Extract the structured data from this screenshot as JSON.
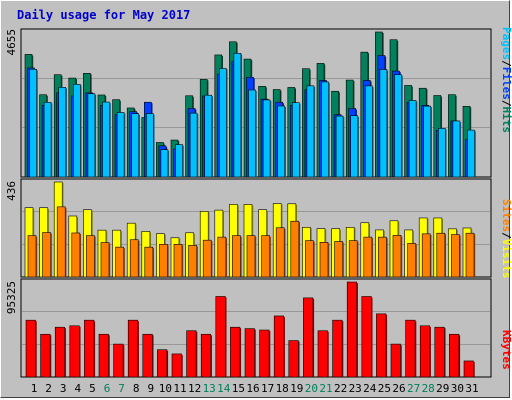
{
  "chart_data": {
    "type": "bar",
    "title": "Daily usage for May 2017",
    "categories": [
      "1",
      "2",
      "3",
      "4",
      "5",
      "6",
      "7",
      "8",
      "9",
      "10",
      "11",
      "12",
      "13",
      "14",
      "15",
      "16",
      "17",
      "18",
      "19",
      "20",
      "21",
      "22",
      "23",
      "24",
      "25",
      "26",
      "27",
      "28",
      "29",
      "30",
      "31"
    ],
    "weekend_days": [
      "6",
      "7",
      "13",
      "14",
      "20",
      "21",
      "27",
      "28"
    ],
    "panels": [
      {
        "max_label": "4655",
        "ymax": 4655,
        "legend": [
          {
            "label": "Pages",
            "color": "#00c0ff"
          },
          {
            "label": "/",
            "color": "#000000"
          },
          {
            "label": "Files",
            "color": "#0040ff"
          },
          {
            "label": "/",
            "color": "#000000"
          },
          {
            "label": "Hits",
            "color": "#00805c"
          }
        ],
        "series": [
          {
            "name": "Hits",
            "color": "#00805c",
            "values": [
              3936,
              2641,
              3284,
              3176,
              3329,
              2633,
              2482,
              2216,
              1910,
              1108,
              1186,
              2608,
              3134,
              3918,
              4341,
              3785,
              2910,
              2808,
              2875,
              3477,
              3647,
              2753,
              3112,
              4008,
              4655,
              4407,
              2938,
              2850,
              2616,
              2642,
              2270
            ]
          },
          {
            "name": "Files",
            "color": "#0040ff",
            "values": [
              3500,
              2300,
              2700,
              2600,
              2700,
              2300,
              2000,
              2100,
              2400,
              1000,
              900,
              2200,
              2600,
              3300,
              3700,
              3200,
              2500,
              2400,
              2300,
              2800,
              3100,
              2000,
              2200,
              3100,
              3900,
              3400,
              2400,
              2300,
              1500,
              1800,
              1200
            ]
          },
          {
            "name": "Pages",
            "color": "#00c0ff",
            "values": [
              3458,
              2396,
              2879,
              2973,
              2672,
              2407,
              2071,
              2033,
              2036,
              877,
              1041,
              2049,
              2626,
              3484,
              3969,
              2794,
              2474,
              2280,
              2389,
              2927,
              3052,
              1956,
              1968,
              2925,
              3450,
              3284,
              2456,
              2275,
              1562,
              1799,
              1506
            ]
          }
        ]
      },
      {
        "max_label": "436",
        "ymax": 436,
        "legend": [
          {
            "label": "Sites",
            "color": "#ff8000"
          },
          {
            "label": "/",
            "color": "#000000"
          },
          {
            "label": "Visits",
            "color": "#ffff00"
          }
        ],
        "series": [
          {
            "name": "Visits",
            "color": "#ffff00",
            "values": [
              318,
              318,
              436,
              280,
              309,
              215,
              215,
              247,
              209,
              199,
              180,
              203,
              301,
              307,
              333,
              333,
              309,
              337,
              336,
              228,
              222,
              222,
              228,
              249,
              216,
              258,
              216,
              271,
              271,
              221,
              225
            ]
          },
          {
            "name": "Sites",
            "color": "#ff8000",
            "values": [
              190,
              204,
              322,
              202,
              190,
              158,
              137,
              171,
              137,
              150,
              150,
              145,
              169,
              183,
              190,
              190,
              190,
              226,
              256,
              167,
              159,
              163,
              167,
              183,
              183,
              191,
              154,
              198,
              201,
              195,
              201
            ]
          }
        ]
      },
      {
        "max_label": "95325",
        "ymax": 95325,
        "legend": [
          {
            "label": "KBytes",
            "color": "#ff0000"
          }
        ],
        "series": [
          {
            "name": "KBytes",
            "color": "#ff0000",
            "values": [
              57017,
              42900,
              49958,
              51370,
              57017,
              42900,
              33025,
              57017,
              42900,
              27379,
              23146,
              46430,
              42900,
              80789,
              49958,
              48544,
              47131,
              61252,
              36555,
              79378,
              46430,
              57017,
              95325,
              80789,
              63368,
              33025,
              57017,
              51370,
              49958,
              42900,
              16094
            ]
          }
        ]
      }
    ]
  }
}
